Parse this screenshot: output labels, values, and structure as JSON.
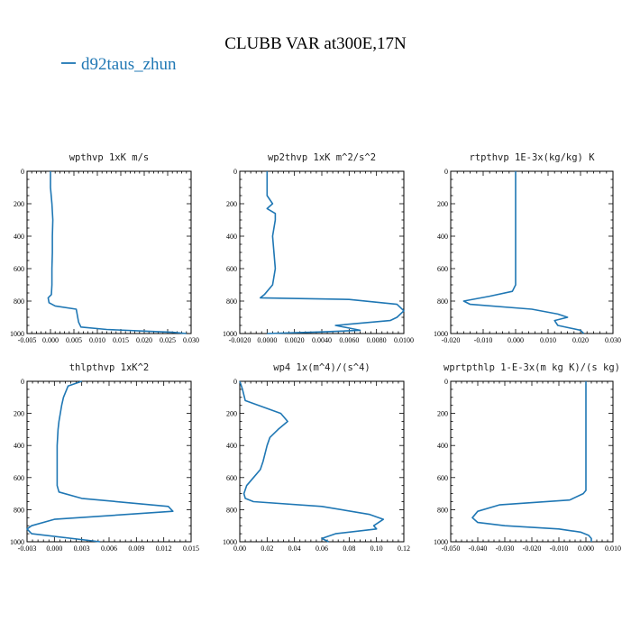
{
  "title": "CLUBB VAR at300E,17N",
  "legend": {
    "label": "d92taus_zhun",
    "color": "#1f77b4"
  },
  "chart_data": [
    {
      "type": "line",
      "title": "wpthvp  1xK m/s",
      "xlim": [
        -0.005,
        0.03
      ],
      "ylim": [
        1000,
        0
      ],
      "xticks": [
        "-0.005",
        "0.000",
        "0.005",
        "0.010",
        "0.015",
        "0.020",
        "0.025",
        "0.030"
      ],
      "yticks": [
        "0",
        "200",
        "400",
        "600",
        "800",
        "1000"
      ],
      "series": [
        {
          "x": [
            0.0,
            0.0,
            0.0003,
            0.0005,
            0.0004,
            0.0004,
            0.0003,
            0.0003,
            0.0002,
            -0.0005,
            -0.0003,
            0.001,
            0.0055,
            0.0058,
            0.006,
            0.0065,
            0.012,
            0.02,
            0.026,
            0.029
          ],
          "y": [
            0,
            100,
            200,
            300,
            400,
            500,
            600,
            700,
            760,
            780,
            810,
            830,
            850,
            900,
            930,
            960,
            975,
            985,
            992,
            1000
          ]
        }
      ]
    },
    {
      "type": "line",
      "title": "wp2thvp  1xK m^2/s^2",
      "xlim": [
        -0.002,
        0.01
      ],
      "ylim": [
        1000,
        0
      ],
      "xticks": [
        "-0.0020",
        "0.0000",
        "0.0020",
        "0.0040",
        "0.0060",
        "0.0080",
        "0.0100"
      ],
      "yticks": [
        "0",
        "200",
        "400",
        "600",
        "800",
        "1000"
      ],
      "series": [
        {
          "x": [
            0.0,
            0.0,
            0.0,
            0.0004,
            0.0,
            0.0006,
            0.0006,
            0.0004,
            0.0005,
            0.0006,
            0.0004,
            -0.0002,
            -0.0005,
            0.006,
            0.0095,
            0.01,
            0.0095,
            0.009,
            0.005,
            0.0068,
            0.004,
            0.0
          ],
          "y": [
            0,
            100,
            150,
            200,
            230,
            260,
            300,
            400,
            500,
            600,
            700,
            760,
            780,
            790,
            820,
            860,
            900,
            920,
            950,
            980,
            990,
            1000
          ]
        }
      ]
    },
    {
      "type": "line",
      "title": "rtpthvp  1E-3x(kg/kg) K",
      "xlim": [
        -0.02,
        0.03
      ],
      "ylim": [
        1000,
        0
      ],
      "xticks": [
        "-0.020",
        "-0.010",
        "0.000",
        "0.010",
        "0.020",
        "0.030"
      ],
      "yticks": [
        "0",
        "200",
        "400",
        "600",
        "800",
        "1000"
      ],
      "series": [
        {
          "x": [
            0.0,
            0.0,
            0.0,
            0.0,
            0.0,
            0.0,
            -0.001,
            -0.008,
            -0.016,
            -0.014,
            0.005,
            0.013,
            0.016,
            0.012,
            0.013,
            0.02,
            0.021
          ],
          "y": [
            0,
            200,
            400,
            600,
            680,
            700,
            740,
            770,
            800,
            820,
            850,
            880,
            900,
            920,
            950,
            980,
            1000
          ]
        }
      ]
    },
    {
      "type": "line",
      "title": "thlpthvp  1xK^2",
      "xlim": [
        -0.003,
        0.015
      ],
      "ylim": [
        1000,
        0
      ],
      "xticks": [
        "-0.003",
        "0.000",
        "0.003",
        "0.006",
        "0.009",
        "0.012",
        "0.015"
      ],
      "yticks": [
        "0",
        "200",
        "400",
        "600",
        "800",
        "1000"
      ],
      "series": [
        {
          "x": [
            0.003,
            0.0015,
            0.001,
            0.0008,
            0.0005,
            0.0004,
            0.0003,
            0.0003,
            0.0003,
            0.0005,
            0.003,
            0.0125,
            0.013,
            0.0,
            -0.0025,
            -0.003,
            -0.0025,
            0.005
          ],
          "y": [
            0,
            30,
            100,
            150,
            250,
            300,
            400,
            500,
            650,
            690,
            730,
            780,
            810,
            860,
            900,
            920,
            950,
            1000
          ]
        }
      ]
    },
    {
      "type": "line",
      "title": "wp4  1x(m^4)/(s^4)",
      "xlim": [
        0,
        0.12
      ],
      "ylim": [
        1000,
        0
      ],
      "xticks": [
        "0.00",
        "0.02",
        "0.04",
        "0.06",
        "0.08",
        "0.10",
        "0.12"
      ],
      "yticks": [
        "0",
        "200",
        "400",
        "600",
        "800",
        "1000"
      ],
      "series": [
        {
          "x": [
            0.0,
            0.002,
            0.004,
            0.03,
            0.035,
            0.028,
            0.022,
            0.02,
            0.017,
            0.015,
            0.01,
            0.005,
            0.003,
            0.004,
            0.01,
            0.06,
            0.095,
            0.105,
            0.098,
            0.1,
            0.07,
            0.06,
            0.065
          ],
          "y": [
            0,
            50,
            120,
            200,
            250,
            300,
            350,
            400,
            500,
            550,
            600,
            650,
            700,
            730,
            750,
            780,
            830,
            860,
            900,
            920,
            950,
            980,
            1000
          ]
        }
      ]
    },
    {
      "type": "line",
      "title": "wprtpthlp  1-E-3x(m kg K)/(s kg)",
      "xlim": [
        -0.05,
        0.01
      ],
      "ylim": [
        1000,
        0
      ],
      "xticks": [
        "-0.050",
        "-0.040",
        "-0.030",
        "-0.020",
        "-0.010",
        "0.000",
        "0.010"
      ],
      "yticks": [
        "0",
        "200",
        "400",
        "600",
        "800",
        "1000"
      ],
      "series": [
        {
          "x": [
            0.0,
            0.0,
            0.0,
            0.0,
            0.0,
            -0.001,
            -0.006,
            -0.032,
            -0.04,
            -0.042,
            -0.04,
            -0.03,
            -0.01,
            -0.002,
            0.001,
            0.002,
            0.002
          ],
          "y": [
            0,
            200,
            400,
            600,
            680,
            700,
            740,
            770,
            810,
            850,
            880,
            900,
            920,
            940,
            960,
            980,
            1000
          ]
        }
      ]
    }
  ]
}
